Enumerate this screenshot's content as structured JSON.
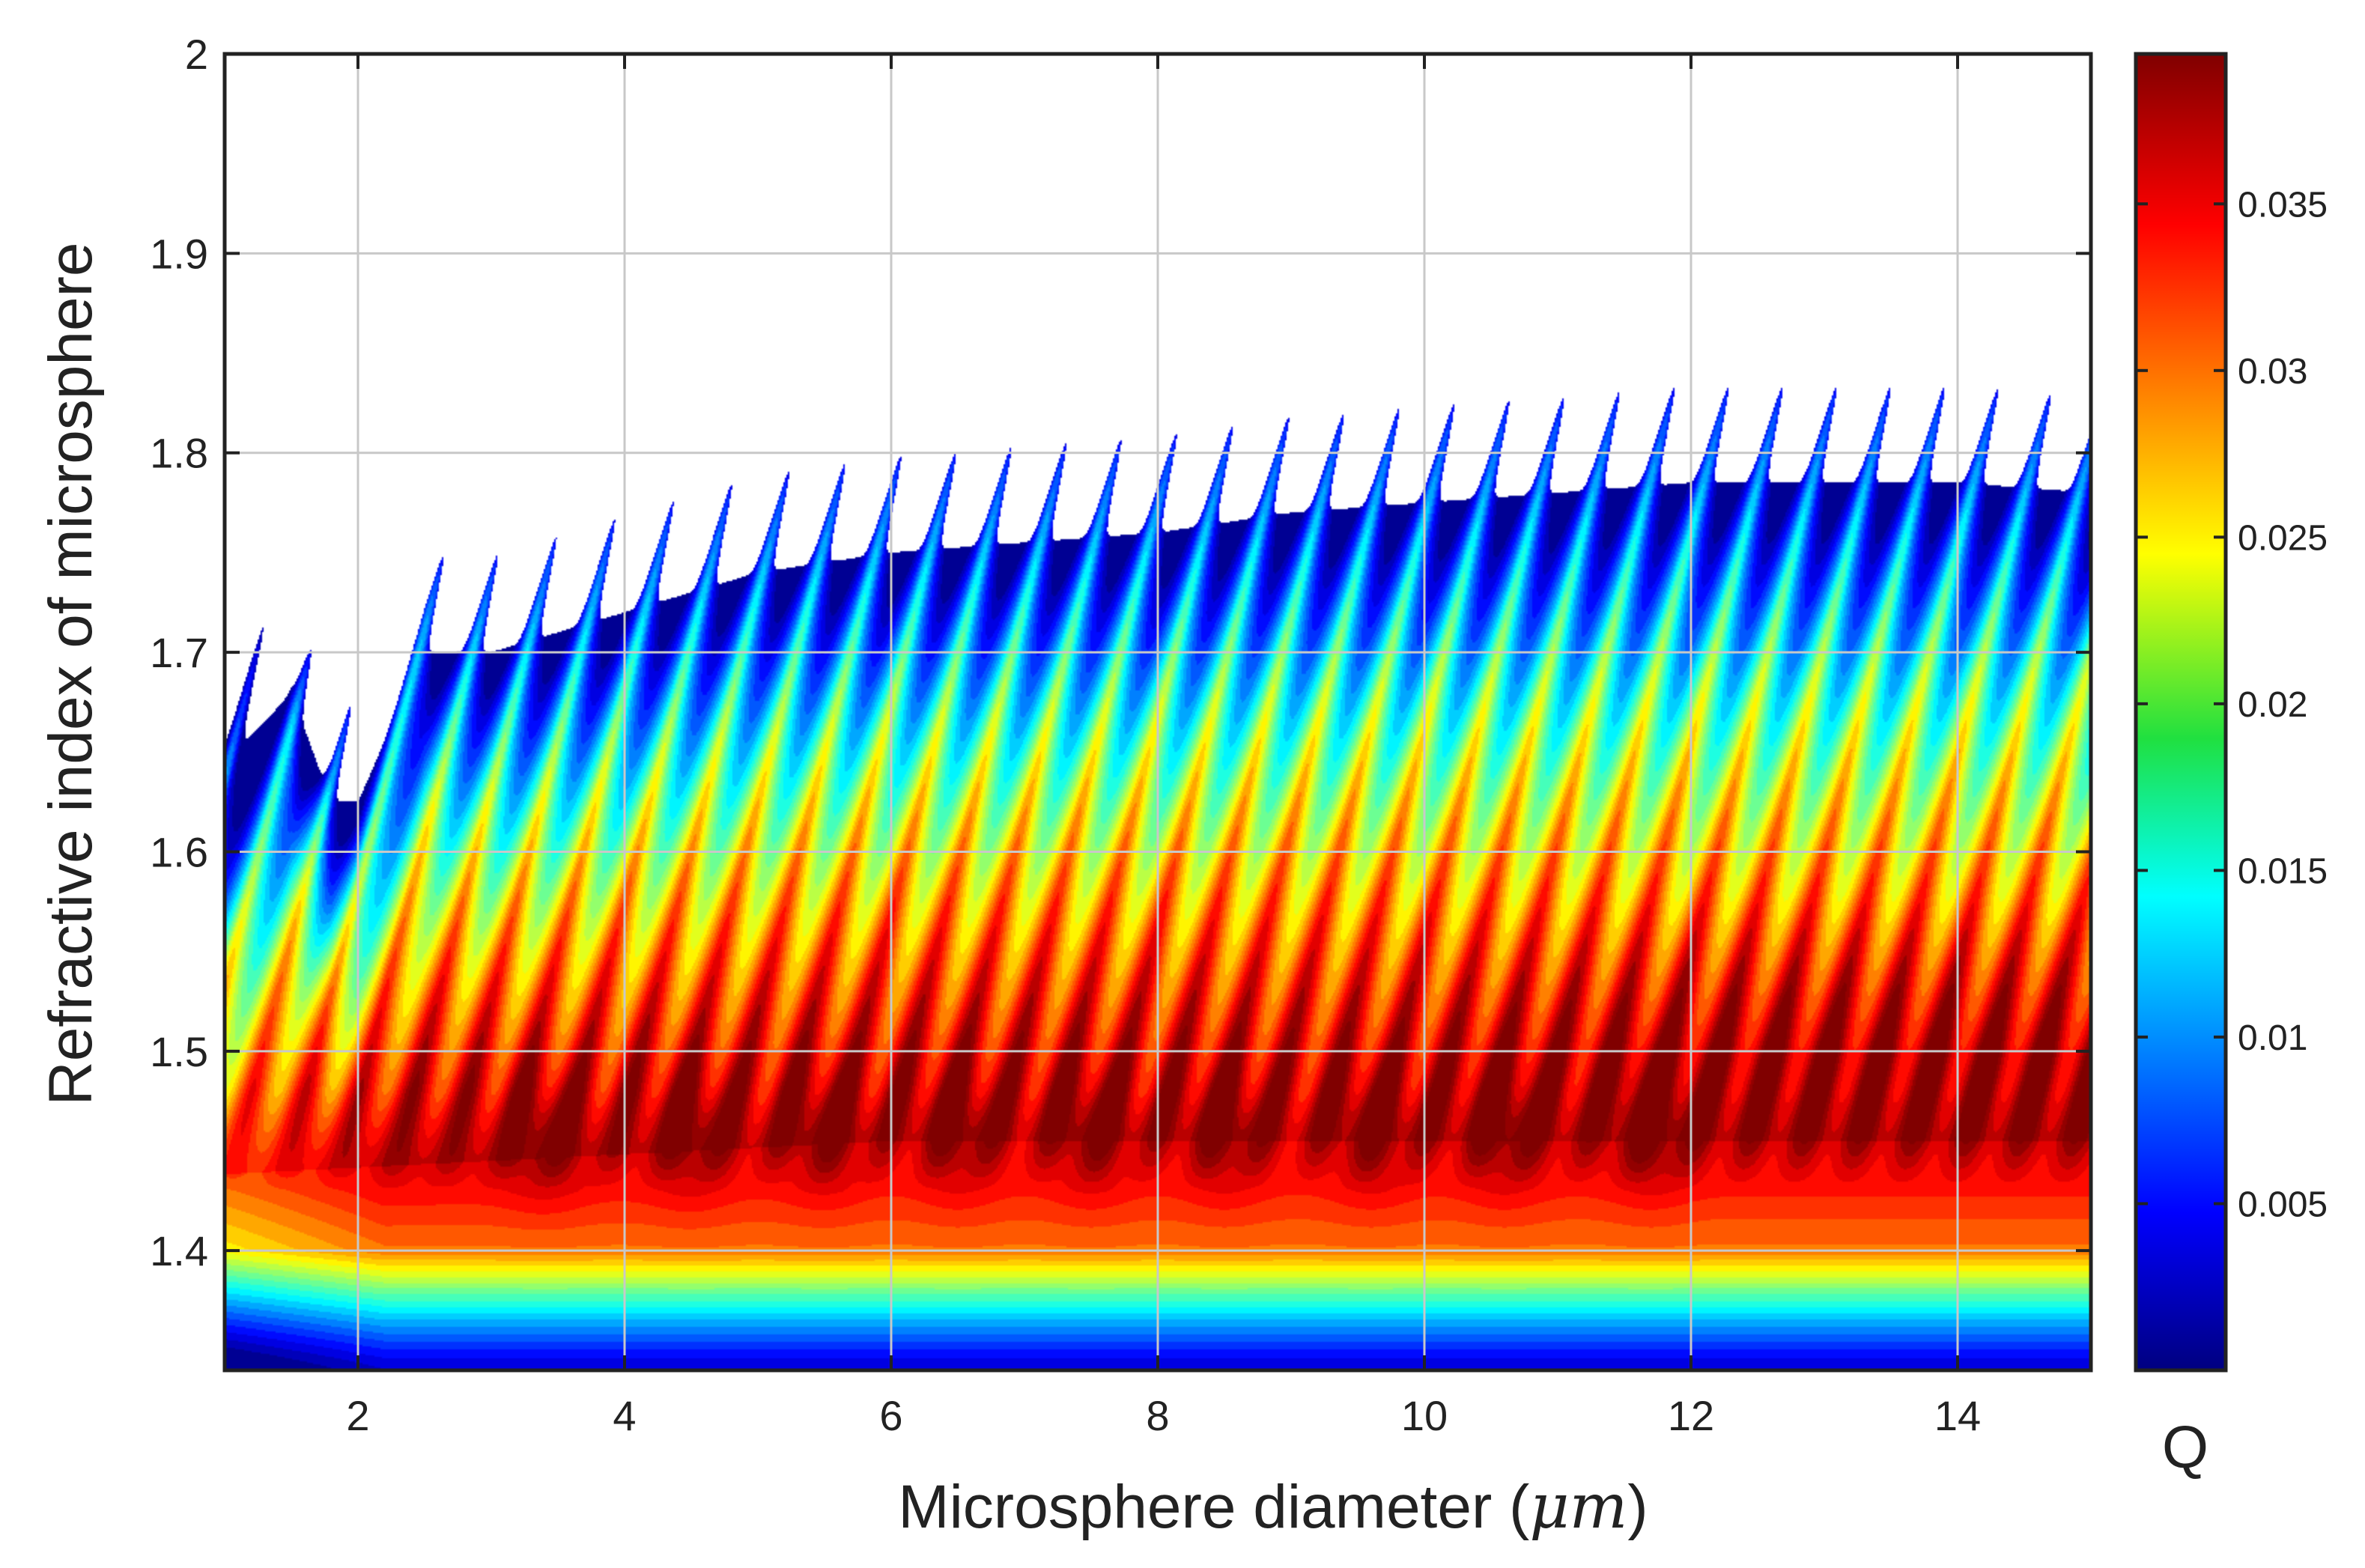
{
  "chart_data": {
    "type": "heatmap",
    "title": "",
    "xlabel": "Microsphere diameter (μm)",
    "xlabel_main": "Microsphere diameter (",
    "xlabel_unit": "μm",
    "xlabel_close": ")",
    "ylabel": "Refractive index of microsphere",
    "colorbar_label": "Q",
    "colormap": "jet",
    "grid": true,
    "xlim": [
      1.0,
      15.0
    ],
    "ylim": [
      1.34,
      2.0
    ],
    "xticks": [
      2,
      4,
      6,
      8,
      10,
      12,
      14
    ],
    "xtick_labels": [
      "2",
      "4",
      "6",
      "8",
      "10",
      "12",
      "14"
    ],
    "yticks": [
      1.4,
      1.5,
      1.6,
      1.7,
      1.8,
      1.9,
      2.0
    ],
    "ytick_labels": [
      "1.4",
      "1.5",
      "1.6",
      "1.7",
      "1.8",
      "1.9",
      "2"
    ],
    "colorbar_range": [
      0.0,
      0.0395
    ],
    "colorbar_ticks": [
      0.005,
      0.01,
      0.015,
      0.02,
      0.025,
      0.03,
      0.035
    ],
    "colorbar_tick_labels": [
      "0.005",
      "0.01",
      "0.015",
      "0.02",
      "0.025",
      "0.03",
      "0.035"
    ],
    "boundary": {
      "description": "upper edge of the non-blank region (refractive index vs diameter)",
      "x": [
        1.0,
        1.3,
        1.5,
        1.8,
        2.0,
        2.5,
        3.0,
        4.0,
        5.0,
        6.0,
        7.0,
        8.0,
        9.0,
        10.0,
        11.0,
        12.0,
        13.0,
        14.0,
        15.0
      ],
      "n": [
        1.645,
        1.665,
        1.68,
        1.625,
        1.625,
        1.7,
        1.7,
        1.72,
        1.74,
        1.75,
        1.755,
        1.76,
        1.77,
        1.775,
        1.78,
        1.785,
        1.785,
        1.785,
        1.78
      ]
    },
    "ridges": {
      "description": "diagonal resonance ridges; line number k peaks at diameter d_k",
      "first_peak_diameter": 1.3,
      "spacing": 0.405,
      "count": 34
    },
    "peak_region": {
      "description": "darkest-red lobes (Q ≈ 0.038) at refractive index ≈ 1.46",
      "n_center": 1.46,
      "lobe_diameters": [
        3.4,
        4.5,
        5.5,
        6.5,
        7.5,
        8.5,
        9.6,
        10.6,
        11.7
      ]
    }
  }
}
